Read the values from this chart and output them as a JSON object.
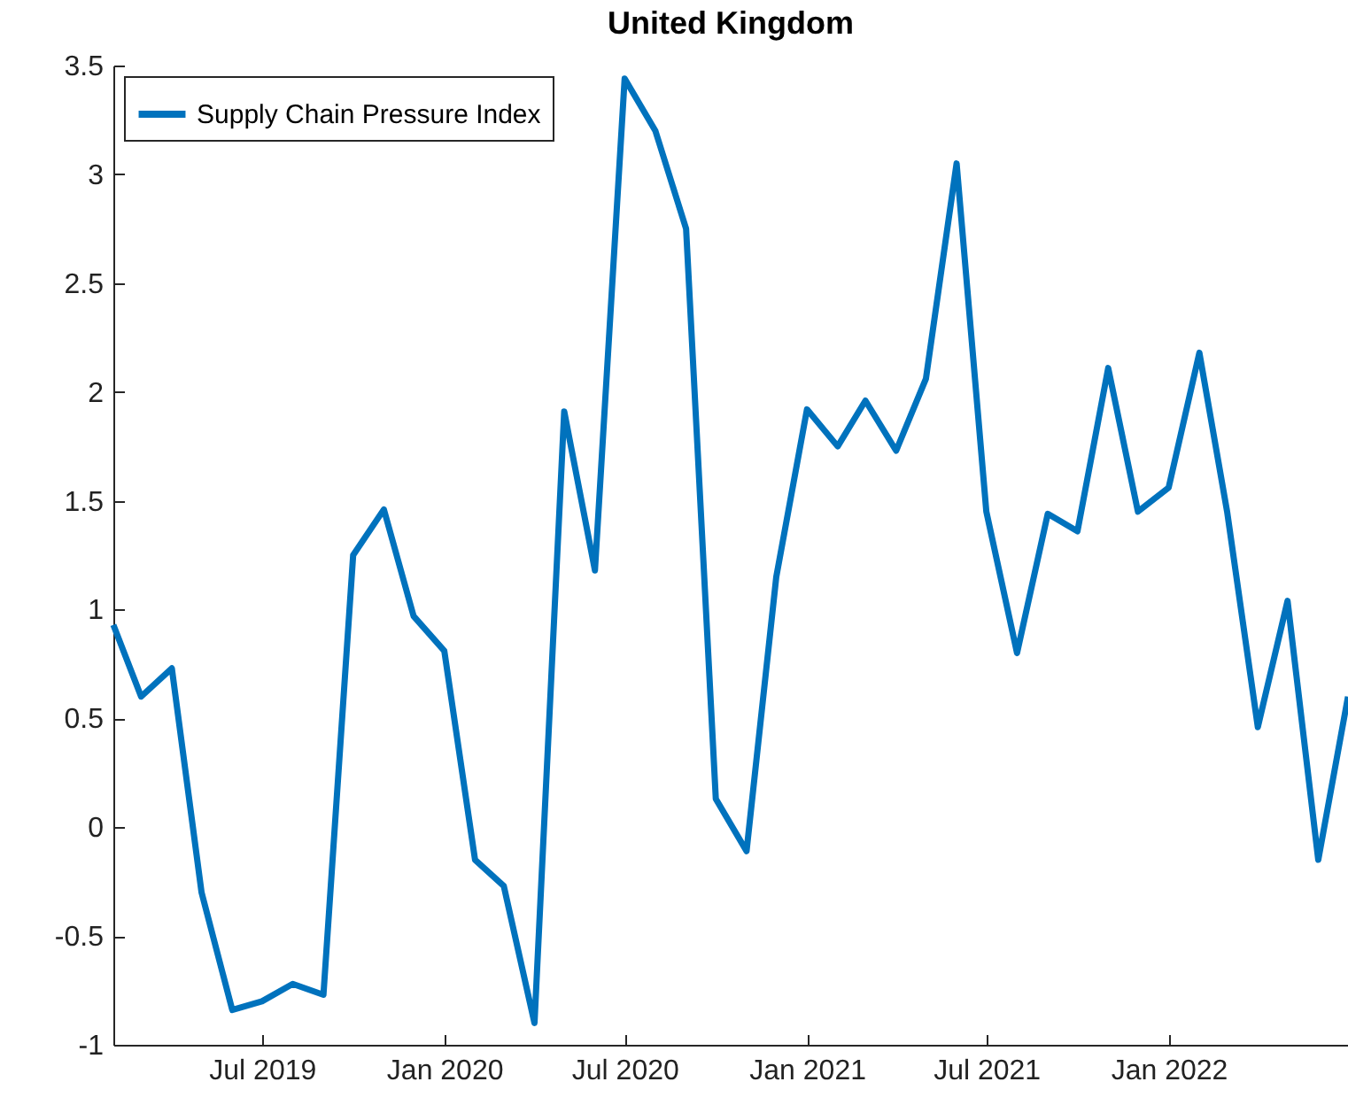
{
  "chart_data": {
    "type": "line",
    "title": "United Kingdom",
    "x": [
      "2019-02",
      "2019-03",
      "2019-04",
      "2019-05",
      "2019-06",
      "2019-07",
      "2019-08",
      "2019-09",
      "2019-10",
      "2019-11",
      "2019-12",
      "2020-01",
      "2020-02",
      "2020-03",
      "2020-04",
      "2020-05",
      "2020-06",
      "2020-07",
      "2020-08",
      "2020-09",
      "2020-10",
      "2020-11",
      "2020-12",
      "2021-01",
      "2021-02",
      "2021-03",
      "2021-04",
      "2021-05",
      "2021-06",
      "2021-07",
      "2021-08",
      "2021-09",
      "2021-10",
      "2021-11",
      "2021-12",
      "2022-01",
      "2022-02",
      "2022-03",
      "2022-04",
      "2022-05",
      "2022-06",
      "2022-07"
    ],
    "series": [
      {
        "name": "Supply Chain Pressure Index",
        "color": "#0072bd",
        "values": [
          0.93,
          0.6,
          0.73,
          -0.3,
          -0.84,
          -0.8,
          -0.72,
          -0.77,
          1.25,
          1.46,
          0.97,
          0.81,
          -0.15,
          -0.27,
          -0.9,
          1.91,
          1.18,
          3.44,
          3.2,
          2.75,
          0.13,
          -0.11,
          1.15,
          1.92,
          1.75,
          1.96,
          1.73,
          2.06,
          3.05,
          1.45,
          0.8,
          1.44,
          1.36,
          2.11,
          1.45,
          1.56,
          2.18,
          1.45,
          0.46,
          1.04,
          -0.15,
          0.6
        ]
      }
    ],
    "xlim": [
      "2019-02",
      "2022-07"
    ],
    "xticks": [
      {
        "value": "2019-07",
        "label": "Jul 2019"
      },
      {
        "value": "2020-01",
        "label": "Jan 2020"
      },
      {
        "value": "2020-07",
        "label": "Jul 2020"
      },
      {
        "value": "2021-01",
        "label": "Jan 2021"
      },
      {
        "value": "2021-07",
        "label": "Jul 2021"
      },
      {
        "value": "2022-01",
        "label": "Jan 2022"
      }
    ],
    "ylim": [
      -1,
      3.5
    ],
    "yticks": [
      -1,
      -0.5,
      0,
      0.5,
      1,
      1.5,
      2,
      2.5,
      3,
      3.5
    ],
    "grid": false,
    "legend": "top left",
    "line_style": "solid"
  }
}
